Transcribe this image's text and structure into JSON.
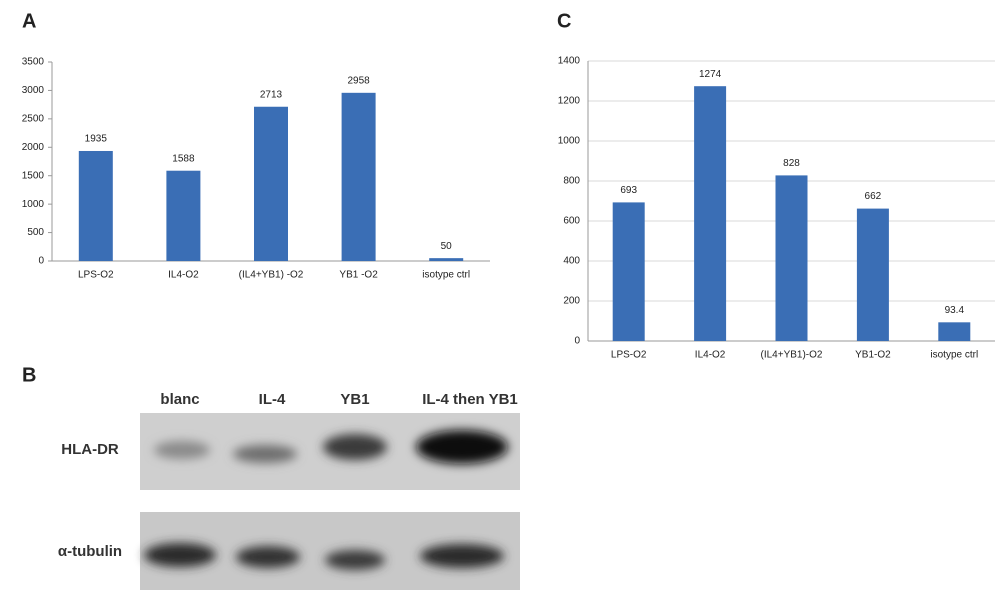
{
  "chart_data": [
    {
      "type": "bar",
      "panel_label": "A",
      "categories": [
        "LPS-O2",
        "IL4-O2",
        "(IL4+YB1) -O2",
        "YB1 -O2",
        "isotype ctrl"
      ],
      "values": [
        1935,
        1588,
        2713,
        2958,
        50
      ],
      "color": "#3a6eb5",
      "ylim": [
        0,
        3500
      ],
      "yticks": [
        0,
        500,
        1000,
        1500,
        2000,
        2500,
        3000,
        3500
      ],
      "grid": false
    },
    {
      "type": "bar",
      "panel_label": "C",
      "categories": [
        "LPS-O2",
        "IL4-O2",
        "(IL4+YB1)-O2",
        "YB1-O2",
        "isotype ctrl"
      ],
      "values": [
        693,
        1274,
        828,
        662,
        93.4
      ],
      "color": "#3a6eb5",
      "ylim": [
        0,
        1400
      ],
      "yticks": [
        0,
        200,
        400,
        600,
        800,
        1000,
        1200,
        1400
      ],
      "grid": true
    }
  ],
  "blot": {
    "panel_label": "B",
    "lanes": [
      "blanc",
      "IL-4",
      "YB1",
      "IL-4 then YB1"
    ],
    "rows": [
      "HLA-DR",
      "α-tubulin"
    ]
  }
}
